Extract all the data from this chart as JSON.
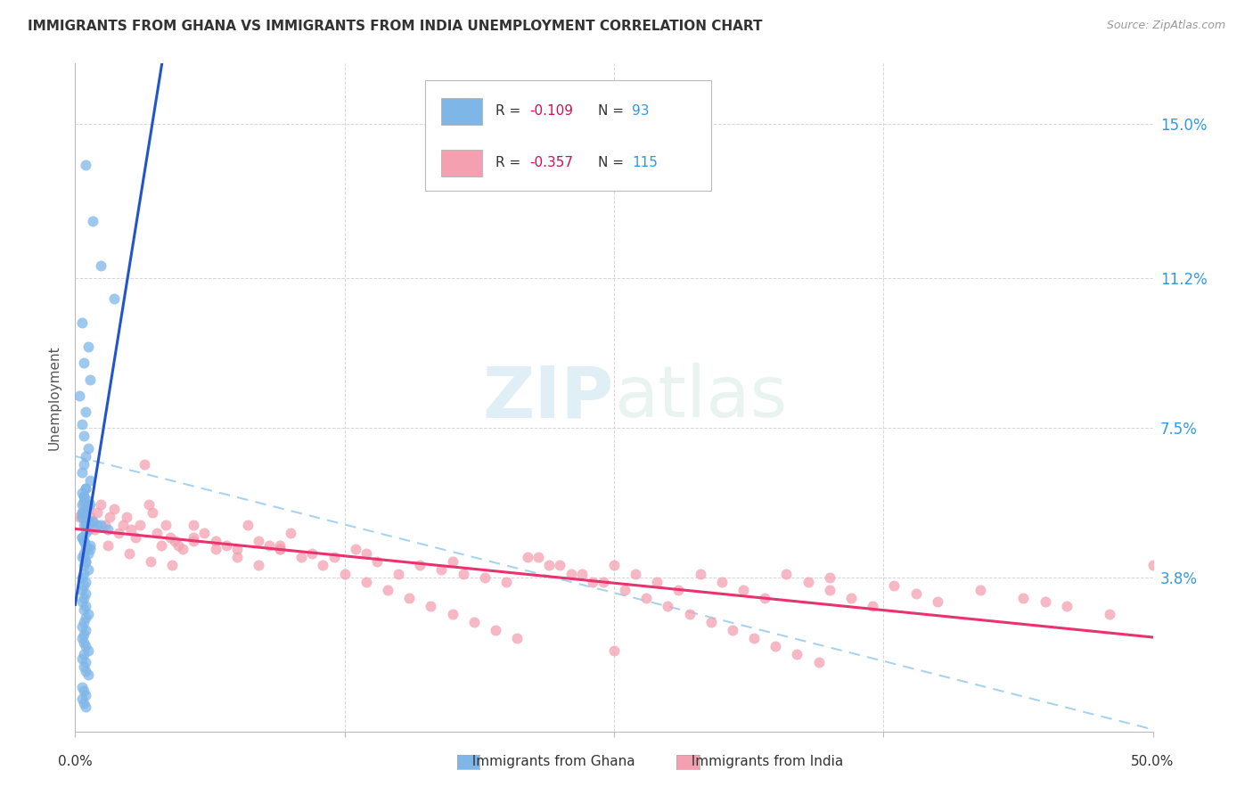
{
  "title": "IMMIGRANTS FROM GHANA VS IMMIGRANTS FROM INDIA UNEMPLOYMENT CORRELATION CHART",
  "source": "Source: ZipAtlas.com",
  "ylabel": "Unemployment",
  "yticks": [
    0.0,
    0.038,
    0.075,
    0.112,
    0.15
  ],
  "ytick_labels": [
    "",
    "3.8%",
    "7.5%",
    "11.2%",
    "15.0%"
  ],
  "xlim": [
    0.0,
    0.5
  ],
  "ylim": [
    0.0,
    0.165
  ],
  "ghana_color": "#7EB6E8",
  "india_color": "#F4A0B0",
  "ghana_trend_color": "#2255CC",
  "india_trend_color": "#E8336E",
  "dashed_line_color": "#99CCEE",
  "ghana_scatter_x": [
    0.005,
    0.008,
    0.012,
    0.018,
    0.003,
    0.006,
    0.004,
    0.007,
    0.002,
    0.005,
    0.003,
    0.004,
    0.006,
    0.005,
    0.004,
    0.003,
    0.007,
    0.005,
    0.004,
    0.006,
    0.003,
    0.005,
    0.004,
    0.006,
    0.005,
    0.003,
    0.004,
    0.007,
    0.005,
    0.004,
    0.003,
    0.005,
    0.004,
    0.006,
    0.004,
    0.003,
    0.005,
    0.004,
    0.003,
    0.005,
    0.004,
    0.003,
    0.005,
    0.004,
    0.006,
    0.005,
    0.004,
    0.003,
    0.005,
    0.004,
    0.003,
    0.004,
    0.005,
    0.006,
    0.004,
    0.003,
    0.005,
    0.004,
    0.005,
    0.006,
    0.004,
    0.003,
    0.005,
    0.004,
    0.003,
    0.006,
    0.008,
    0.01,
    0.012,
    0.015,
    0.005,
    0.003,
    0.004,
    0.006,
    0.007,
    0.005,
    0.004,
    0.003,
    0.006,
    0.005,
    0.003,
    0.004,
    0.005,
    0.007,
    0.006,
    0.004,
    0.005,
    0.003,
    0.004,
    0.005,
    0.003,
    0.004,
    0.005
  ],
  "ghana_scatter_y": [
    0.14,
    0.126,
    0.115,
    0.107,
    0.101,
    0.095,
    0.091,
    0.087,
    0.083,
    0.079,
    0.076,
    0.073,
    0.07,
    0.068,
    0.066,
    0.064,
    0.062,
    0.06,
    0.058,
    0.056,
    0.054,
    0.053,
    0.051,
    0.05,
    0.049,
    0.048,
    0.047,
    0.046,
    0.045,
    0.044,
    0.043,
    0.042,
    0.041,
    0.04,
    0.039,
    0.038,
    0.037,
    0.036,
    0.035,
    0.034,
    0.033,
    0.032,
    0.031,
    0.03,
    0.029,
    0.028,
    0.027,
    0.026,
    0.025,
    0.024,
    0.023,
    0.022,
    0.021,
    0.02,
    0.019,
    0.018,
    0.017,
    0.016,
    0.015,
    0.014,
    0.057,
    0.056,
    0.055,
    0.054,
    0.053,
    0.052,
    0.052,
    0.051,
    0.051,
    0.05,
    0.06,
    0.059,
    0.058,
    0.057,
    0.056,
    0.055,
    0.054,
    0.053,
    0.052,
    0.051,
    0.048,
    0.047,
    0.046,
    0.045,
    0.044,
    0.043,
    0.042,
    0.011,
    0.01,
    0.009,
    0.008,
    0.007,
    0.006
  ],
  "india_scatter_x": [
    0.002,
    0.003,
    0.004,
    0.005,
    0.006,
    0.007,
    0.008,
    0.009,
    0.01,
    0.012,
    0.014,
    0.016,
    0.018,
    0.02,
    0.022,
    0.024,
    0.026,
    0.028,
    0.03,
    0.032,
    0.034,
    0.036,
    0.038,
    0.04,
    0.042,
    0.044,
    0.046,
    0.048,
    0.05,
    0.055,
    0.06,
    0.065,
    0.07,
    0.075,
    0.08,
    0.085,
    0.09,
    0.095,
    0.1,
    0.11,
    0.12,
    0.13,
    0.14,
    0.15,
    0.16,
    0.17,
    0.18,
    0.19,
    0.2,
    0.21,
    0.22,
    0.23,
    0.24,
    0.25,
    0.26,
    0.27,
    0.28,
    0.29,
    0.3,
    0.31,
    0.32,
    0.33,
    0.34,
    0.35,
    0.36,
    0.37,
    0.38,
    0.39,
    0.4,
    0.42,
    0.44,
    0.46,
    0.48,
    0.5,
    0.015,
    0.025,
    0.035,
    0.045,
    0.055,
    0.065,
    0.075,
    0.085,
    0.095,
    0.105,
    0.115,
    0.125,
    0.135,
    0.145,
    0.155,
    0.165,
    0.175,
    0.185,
    0.195,
    0.205,
    0.215,
    0.225,
    0.235,
    0.245,
    0.255,
    0.265,
    0.275,
    0.285,
    0.295,
    0.305,
    0.315,
    0.325,
    0.335,
    0.345,
    0.055,
    0.095,
    0.135,
    0.175,
    0.25,
    0.35,
    0.45
  ],
  "india_scatter_y": [
    0.053,
    0.054,
    0.056,
    0.051,
    0.055,
    0.053,
    0.052,
    0.05,
    0.054,
    0.056,
    0.051,
    0.053,
    0.055,
    0.049,
    0.051,
    0.053,
    0.05,
    0.048,
    0.051,
    0.066,
    0.056,
    0.054,
    0.049,
    0.046,
    0.051,
    0.048,
    0.047,
    0.046,
    0.045,
    0.051,
    0.049,
    0.047,
    0.046,
    0.045,
    0.051,
    0.047,
    0.046,
    0.045,
    0.049,
    0.044,
    0.043,
    0.045,
    0.042,
    0.039,
    0.041,
    0.04,
    0.039,
    0.038,
    0.037,
    0.043,
    0.041,
    0.039,
    0.037,
    0.041,
    0.039,
    0.037,
    0.035,
    0.039,
    0.037,
    0.035,
    0.033,
    0.039,
    0.037,
    0.035,
    0.033,
    0.031,
    0.036,
    0.034,
    0.032,
    0.035,
    0.033,
    0.031,
    0.029,
    0.041,
    0.046,
    0.044,
    0.042,
    0.041,
    0.047,
    0.045,
    0.043,
    0.041,
    0.045,
    0.043,
    0.041,
    0.039,
    0.037,
    0.035,
    0.033,
    0.031,
    0.029,
    0.027,
    0.025,
    0.023,
    0.043,
    0.041,
    0.039,
    0.037,
    0.035,
    0.033,
    0.031,
    0.029,
    0.027,
    0.025,
    0.023,
    0.021,
    0.019,
    0.017,
    0.048,
    0.046,
    0.044,
    0.042,
    0.02,
    0.038,
    0.032
  ]
}
